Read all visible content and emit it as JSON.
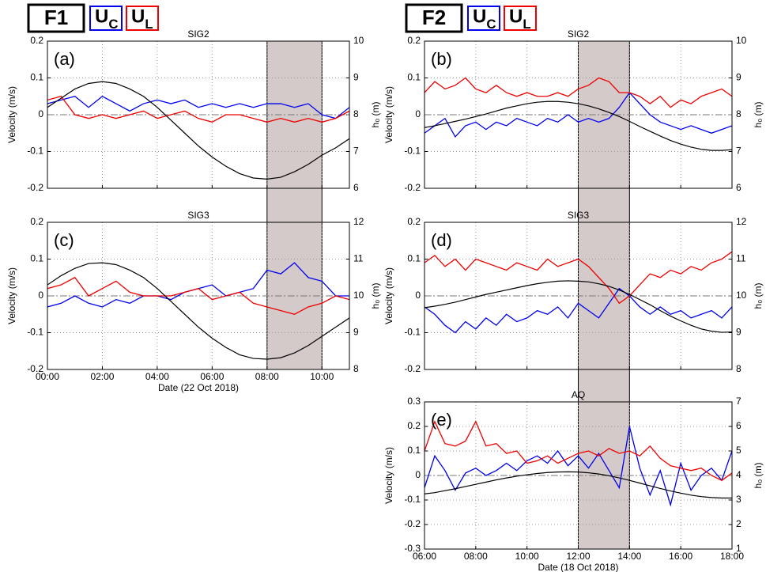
{
  "figure_labels": [
    "F1",
    "F2"
  ],
  "chart_data": [
    {
      "type": "line",
      "title": "SIG2",
      "panel_label": "(a)",
      "ylabel": "Velocity (m/s)",
      "y2label": "h₀ (m)",
      "x": [
        0,
        0.5,
        1,
        1.5,
        2,
        2.5,
        3,
        3.5,
        4,
        4.5,
        5,
        5.5,
        6,
        6.5,
        7,
        7.5,
        8,
        8.5,
        9,
        9.5,
        10,
        10.5,
        11
      ],
      "series": [
        {
          "name": "UC",
          "color": "#0000ee",
          "values": [
            0.03,
            0.04,
            0.05,
            0.02,
            0.05,
            0.03,
            0.01,
            0.03,
            0.04,
            0.03,
            0.04,
            0.02,
            0.03,
            0.02,
            0.03,
            0.02,
            0.03,
            0.03,
            0.02,
            0.03,
            0.0,
            -0.01,
            0.02
          ]
        },
        {
          "name": "UL",
          "color": "#ee0000",
          "values": [
            0.04,
            0.05,
            0.0,
            -0.01,
            0.0,
            -0.01,
            0.0,
            0.01,
            -0.01,
            0.0,
            0.01,
            -0.01,
            -0.02,
            0.0,
            0.0,
            -0.01,
            -0.02,
            -0.01,
            -0.02,
            -0.01,
            -0.02,
            -0.01,
            0.01
          ]
        },
        {
          "color": "#000000",
          "axis": "y2",
          "values": [
            8.2,
            8.45,
            8.7,
            8.85,
            8.9,
            8.85,
            8.7,
            8.5,
            8.2,
            7.85,
            7.5,
            7.15,
            6.85,
            6.6,
            6.4,
            6.28,
            6.25,
            6.3,
            6.45,
            6.65,
            6.9,
            7.1,
            7.35
          ]
        }
      ],
      "xlim": [
        0,
        11
      ],
      "xticks": [
        0,
        2,
        4,
        6,
        8,
        10
      ],
      "ylim": [
        -0.2,
        0.2
      ],
      "yticks": [
        -0.2,
        -0.1,
        0,
        0.1,
        0.2
      ],
      "y2lim": [
        6,
        10
      ],
      "y2ticks": [
        6,
        7,
        8,
        9,
        10
      ],
      "grid": true,
      "shaded_span": [
        8,
        10
      ],
      "shade_color": "#d4caca",
      "reference_line": 0
    },
    {
      "type": "line",
      "title": "SIG2",
      "panel_label": "(b)",
      "ylabel": "Velocity (m/s)",
      "y2label": "h₀ (m)",
      "x": [
        6,
        6.4,
        6.8,
        7.2,
        7.6,
        8,
        8.4,
        8.8,
        9.2,
        9.6,
        10,
        10.4,
        10.8,
        11.2,
        11.6,
        12,
        12.4,
        12.8,
        13.2,
        13.6,
        14,
        14.4,
        14.8,
        15.2,
        15.6,
        16,
        16.4,
        16.8,
        17.2,
        17.6,
        18
      ],
      "series": [
        {
          "name": "UC",
          "color": "#0000ee",
          "values": [
            -0.05,
            -0.03,
            -0.01,
            -0.06,
            -0.03,
            -0.02,
            -0.04,
            -0.02,
            -0.03,
            -0.01,
            -0.02,
            -0.03,
            -0.01,
            -0.02,
            0.0,
            -0.02,
            -0.01,
            -0.02,
            -0.01,
            0.02,
            0.06,
            0.03,
            0.0,
            -0.02,
            -0.03,
            -0.04,
            -0.03,
            -0.04,
            -0.05,
            -0.04,
            -0.03
          ]
        },
        {
          "name": "UL",
          "color": "#ee0000",
          "values": [
            0.06,
            0.09,
            0.07,
            0.08,
            0.1,
            0.07,
            0.06,
            0.08,
            0.06,
            0.05,
            0.06,
            0.05,
            0.05,
            0.06,
            0.05,
            0.07,
            0.08,
            0.1,
            0.09,
            0.06,
            0.06,
            0.05,
            0.03,
            0.05,
            0.02,
            0.04,
            0.03,
            0.05,
            0.06,
            0.07,
            0.05
          ]
        },
        {
          "color": "#000000",
          "axis": "y2",
          "values": [
            7.65,
            7.7,
            7.76,
            7.82,
            7.88,
            7.95,
            8.02,
            8.1,
            8.18,
            8.24,
            8.3,
            8.34,
            8.36,
            8.36,
            8.34,
            8.3,
            8.24,
            8.16,
            8.06,
            7.95,
            7.82,
            7.68,
            7.55,
            7.42,
            7.3,
            7.2,
            7.12,
            7.06,
            7.03,
            7.03,
            7.05
          ]
        }
      ],
      "xlim": [
        6,
        18
      ],
      "xticks": [
        6,
        8,
        10,
        12,
        14,
        16,
        18
      ],
      "ylim": [
        -0.2,
        0.2
      ],
      "yticks": [
        -0.2,
        -0.1,
        0,
        0.1,
        0.2
      ],
      "y2lim": [
        6,
        10
      ],
      "y2ticks": [
        6,
        7,
        8,
        9,
        10
      ],
      "grid": true,
      "shaded_span": [
        12,
        14
      ],
      "shade_color": "#d4caca",
      "reference_line": 0
    },
    {
      "type": "line",
      "title": "SIG3",
      "panel_label": "(c)",
      "ylabel": "Velocity (m/s)",
      "y2label": "h₀ (m)",
      "xlabel": "Date (22 Oct 2018)",
      "x": [
        0,
        0.5,
        1,
        1.5,
        2,
        2.5,
        3,
        3.5,
        4,
        4.5,
        5,
        5.5,
        6,
        6.5,
        7,
        7.5,
        8,
        8.5,
        9,
        9.5,
        10,
        10.5,
        11
      ],
      "series": [
        {
          "name": "UC",
          "color": "#0000ee",
          "values": [
            -0.03,
            -0.02,
            0.0,
            -0.02,
            -0.03,
            -0.01,
            -0.02,
            0.0,
            0.0,
            -0.01,
            0.01,
            0.02,
            0.03,
            0.0,
            0.01,
            0.02,
            0.07,
            0.06,
            0.09,
            0.05,
            0.04,
            0.0,
            0.0
          ]
        },
        {
          "name": "UL",
          "color": "#ee0000",
          "values": [
            0.02,
            0.03,
            0.05,
            0.0,
            0.02,
            0.04,
            0.01,
            0.0,
            0.0,
            0.0,
            0.01,
            0.02,
            -0.01,
            0.0,
            0.01,
            -0.02,
            -0.03,
            -0.04,
            -0.05,
            -0.03,
            -0.02,
            0.0,
            -0.01
          ]
        },
        {
          "color": "#000000",
          "axis": "y2",
          "values": [
            10.3,
            10.55,
            10.75,
            10.88,
            10.9,
            10.85,
            10.7,
            10.5,
            10.2,
            9.85,
            9.5,
            9.15,
            8.85,
            8.6,
            8.4,
            8.3,
            8.28,
            8.32,
            8.45,
            8.65,
            8.9,
            9.15,
            9.4
          ]
        }
      ],
      "xlim": [
        0,
        11
      ],
      "xticks": [
        {
          "value": 0,
          "label": "00:00"
        },
        {
          "value": 2,
          "label": "02:00"
        },
        {
          "value": 4,
          "label": "04:00"
        },
        {
          "value": 6,
          "label": "06:00"
        },
        {
          "value": 8,
          "label": "08:00"
        },
        {
          "value": 10,
          "label": "10:00"
        }
      ],
      "ylim": [
        -0.2,
        0.2
      ],
      "yticks": [
        -0.2,
        -0.1,
        0,
        0.1,
        0.2
      ],
      "y2lim": [
        8,
        12
      ],
      "y2ticks": [
        8,
        9,
        10,
        11,
        12
      ],
      "grid": true,
      "shaded_span": [
        8,
        10
      ],
      "shade_color": "#d4caca",
      "reference_line": 0
    },
    {
      "type": "line",
      "title": "SIG3",
      "panel_label": "(d)",
      "ylabel": "Velocity (m/s)",
      "y2label": "h₀ (m)",
      "x": [
        6,
        6.4,
        6.8,
        7.2,
        7.6,
        8,
        8.4,
        8.8,
        9.2,
        9.6,
        10,
        10.4,
        10.8,
        11.2,
        11.6,
        12,
        12.4,
        12.8,
        13.2,
        13.6,
        14,
        14.4,
        14.8,
        15.2,
        15.6,
        16,
        16.4,
        16.8,
        17.2,
        17.6,
        18
      ],
      "series": [
        {
          "name": "UC",
          "color": "#0000ee",
          "values": [
            -0.03,
            -0.05,
            -0.08,
            -0.1,
            -0.07,
            -0.09,
            -0.06,
            -0.08,
            -0.05,
            -0.07,
            -0.06,
            -0.04,
            -0.05,
            -0.03,
            -0.06,
            -0.02,
            -0.04,
            -0.06,
            -0.02,
            0.02,
            0.0,
            -0.03,
            -0.05,
            -0.03,
            -0.05,
            -0.04,
            -0.06,
            -0.05,
            -0.04,
            -0.06,
            -0.03
          ]
        },
        {
          "name": "UL",
          "color": "#ee0000",
          "values": [
            0.09,
            0.11,
            0.08,
            0.1,
            0.07,
            0.1,
            0.09,
            0.08,
            0.07,
            0.09,
            0.08,
            0.07,
            0.1,
            0.08,
            0.09,
            0.1,
            0.08,
            0.05,
            0.02,
            -0.02,
            0.0,
            0.03,
            0.06,
            0.05,
            0.07,
            0.06,
            0.08,
            0.07,
            0.09,
            0.1,
            0.12
          ]
        },
        {
          "color": "#000000",
          "axis": "y2",
          "values": [
            9.68,
            9.72,
            9.77,
            9.83,
            9.9,
            9.97,
            10.04,
            10.1,
            10.16,
            10.22,
            10.28,
            10.33,
            10.37,
            10.4,
            10.41,
            10.4,
            10.38,
            10.33,
            10.26,
            10.16,
            10.04,
            9.9,
            9.76,
            9.6,
            9.45,
            9.32,
            9.2,
            9.1,
            9.04,
            9.01,
            9.02
          ]
        }
      ],
      "xlim": [
        6,
        18
      ],
      "xticks": [
        6,
        8,
        10,
        12,
        14,
        16,
        18
      ],
      "ylim": [
        -0.2,
        0.2
      ],
      "yticks": [
        -0.2,
        -0.1,
        0,
        0.1,
        0.2
      ],
      "y2lim": [
        8,
        12
      ],
      "y2ticks": [
        8,
        9,
        10,
        11,
        12
      ],
      "grid": true,
      "shaded_span": [
        12,
        14
      ],
      "shade_color": "#d4caca",
      "reference_line": 0
    },
    {
      "type": "line",
      "title": "AQ",
      "panel_label": "(e)",
      "ylabel": "Velocity (m/s)",
      "y2label": "h₀ (m)",
      "xlabel": "Date (18 Oct 2018)",
      "x": [
        6,
        6.4,
        6.8,
        7.2,
        7.6,
        8,
        8.4,
        8.8,
        9.2,
        9.6,
        10,
        10.4,
        10.8,
        11.2,
        11.6,
        12,
        12.4,
        12.8,
        13.2,
        13.6,
        14,
        14.4,
        14.8,
        15.2,
        15.6,
        16,
        16.4,
        16.8,
        17.2,
        17.6,
        18
      ],
      "series": [
        {
          "name": "UC",
          "color": "#0000ee",
          "values": [
            -0.05,
            0.08,
            0.02,
            -0.06,
            0.01,
            0.03,
            0.0,
            0.02,
            0.05,
            0.02,
            0.06,
            0.08,
            0.05,
            0.1,
            0.04,
            0.08,
            0.03,
            0.09,
            0.02,
            -0.05,
            0.2,
            0.03,
            -0.08,
            0.02,
            -0.12,
            0.05,
            -0.06,
            0.0,
            0.03,
            -0.02,
            0.1
          ]
        },
        {
          "name": "UL",
          "color": "#ee0000",
          "values": [
            0.1,
            0.22,
            0.13,
            0.12,
            0.14,
            0.22,
            0.12,
            0.13,
            0.09,
            0.1,
            0.05,
            0.06,
            0.08,
            0.05,
            0.07,
            0.09,
            0.1,
            0.08,
            0.11,
            0.09,
            0.1,
            0.08,
            0.12,
            0.07,
            0.04,
            0.03,
            0.02,
            0.03,
            0.0,
            -0.02,
            0.01
          ]
        },
        {
          "color": "#000000",
          "axis": "y2",
          "values": [
            3.25,
            3.3,
            3.38,
            3.46,
            3.55,
            3.64,
            3.73,
            3.82,
            3.9,
            3.97,
            4.03,
            4.08,
            4.12,
            4.14,
            4.15,
            4.14,
            4.11,
            4.06,
            3.99,
            3.9,
            3.8,
            3.69,
            3.58,
            3.47,
            3.37,
            3.28,
            3.2,
            3.14,
            3.1,
            3.08,
            3.08
          ]
        }
      ],
      "xlim": [
        6,
        18
      ],
      "xticks": [
        {
          "value": 6,
          "label": "06:00"
        },
        {
          "value": 8,
          "label": "08:00"
        },
        {
          "value": 10,
          "label": "10:00"
        },
        {
          "value": 12,
          "label": "12:00"
        },
        {
          "value": 14,
          "label": "14:00"
        },
        {
          "value": 16,
          "label": "16:00"
        },
        {
          "value": 18,
          "label": "18:00"
        }
      ],
      "ylim": [
        -0.3,
        0.3
      ],
      "yticks": [
        -0.3,
        -0.2,
        -0.1,
        0,
        0.1,
        0.2,
        0.3
      ],
      "y2lim": [
        1,
        7
      ],
      "y2ticks": [
        1,
        2,
        3,
        4,
        5,
        6,
        7
      ],
      "grid": true,
      "shaded_span": [
        12,
        14
      ],
      "shade_color": "#d4caca",
      "reference_line": 0
    }
  ]
}
